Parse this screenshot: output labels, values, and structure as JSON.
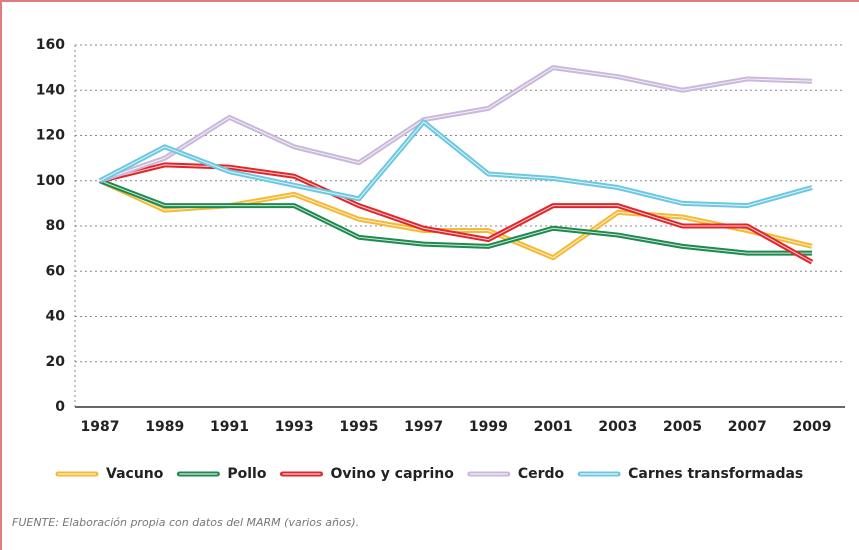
{
  "chart_data": {
    "type": "line",
    "categories": [
      "1987",
      "1989",
      "1991",
      "1993",
      "1995",
      "1997",
      "1999",
      "2001",
      "2003",
      "2005",
      "2007",
      "2009"
    ],
    "series": [
      {
        "name": "Vacuno",
        "color": "#f5b935",
        "values": [
          100,
          87,
          89,
          94,
          83,
          78,
          78,
          66,
          86,
          84,
          78,
          71
        ]
      },
      {
        "name": "Pollo",
        "color": "#1e8a4f",
        "values": [
          100,
          89,
          89,
          89,
          75,
          72,
          71,
          79,
          76,
          71,
          68,
          68
        ]
      },
      {
        "name": "Ovino y caprino",
        "color": "#e0262b",
        "values": [
          100,
          107,
          106,
          102,
          89,
          79,
          74,
          89,
          89,
          80,
          80,
          64
        ]
      },
      {
        "name": "Cerdo",
        "color": "#c9b8dc",
        "values": [
          100,
          110,
          128,
          115,
          108,
          127,
          132,
          150,
          146,
          140,
          145,
          144
        ]
      },
      {
        "name": "Carnes transformadas",
        "color": "#6cc8e2",
        "values": [
          100,
          115,
          104,
          98,
          92,
          126,
          103,
          101,
          97,
          90,
          89,
          97
        ]
      }
    ],
    "ylim": [
      0,
      160
    ],
    "yticks": [
      0,
      20,
      40,
      60,
      80,
      100,
      120,
      140,
      160
    ],
    "grid": true,
    "source": "FUENTE: Elaboración propia con datos del MARM (varios años)."
  }
}
